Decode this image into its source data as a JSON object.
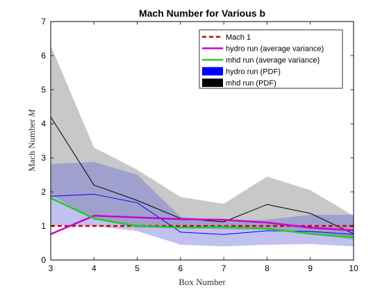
{
  "chart_data": {
    "type": "line",
    "title": "Mach Number for Various b",
    "xlabel": "Box Number",
    "ylabel_text": "Mach Number ",
    "ylabel_symbol": "M",
    "xlim": [
      3,
      10
    ],
    "ylim": [
      0,
      7
    ],
    "xticks": [
      "3",
      "4",
      "5",
      "6",
      "7",
      "8",
      "9",
      "10"
    ],
    "yticks": [
      "0",
      "1",
      "2",
      "3",
      "4",
      "5",
      "6",
      "7"
    ],
    "x": [
      3,
      4,
      5,
      6,
      7,
      8,
      9,
      10
    ],
    "grid": false,
    "legend_position": "top-right",
    "bands": [
      {
        "name": "mhd run (PDF)",
        "fill": "#c8c8c8",
        "upper": [
          6.3,
          3.3,
          2.65,
          1.85,
          1.65,
          2.45,
          2.05,
          1.3
        ],
        "lower": [
          1.9,
          1.2,
          0.95,
          0.95,
          0.9,
          0.9,
          0.75,
          0.6
        ]
      },
      {
        "name": "hydro run (PDF)",
        "fill": "#6464d7",
        "opacity": 0.4,
        "upper": [
          2.82,
          2.88,
          2.5,
          1.27,
          1.15,
          1.18,
          1.33,
          1.33
        ],
        "lower": [
          1.02,
          1.0,
          0.85,
          0.45,
          0.4,
          0.45,
          0.47,
          0.4
        ]
      }
    ],
    "series": [
      {
        "name": "hydro PDF median",
        "color": "#0000ff",
        "width": 1,
        "dash": "",
        "values": [
          1.87,
          1.93,
          1.68,
          0.82,
          0.75,
          0.86,
          0.84,
          0.75
        ]
      },
      {
        "name": "mhd PDF median",
        "color": "#000000",
        "width": 1,
        "dash": "",
        "values": [
          4.2,
          2.2,
          1.75,
          1.22,
          1.12,
          1.63,
          1.37,
          0.77
        ]
      },
      {
        "name": "Mach 1",
        "color": "#cc0000",
        "width": 2.5,
        "dash": "6,4",
        "values": [
          1,
          1,
          1,
          1,
          1,
          1,
          1,
          1
        ]
      },
      {
        "name": "hydro run (average variance)",
        "color": "#cc00cc",
        "width": 2.5,
        "dash": "",
        "values": [
          0.76,
          1.3,
          1.25,
          1.2,
          1.18,
          1.1,
          0.95,
          0.87
        ]
      },
      {
        "name": "mhd run (average variance)",
        "color": "#22cc22",
        "width": 2.5,
        "dash": "",
        "values": [
          1.82,
          1.22,
          1.0,
          0.95,
          0.97,
          0.92,
          0.77,
          0.67
        ]
      }
    ],
    "legend": [
      {
        "label": "Mach 1",
        "kind": "line",
        "color": "#cc0000",
        "dash": "6,4"
      },
      {
        "label": "hydro run (average variance)",
        "kind": "line",
        "color": "#cc00cc",
        "dash": ""
      },
      {
        "label": "mhd run (average variance)",
        "kind": "line",
        "color": "#22cc22",
        "dash": ""
      },
      {
        "label": "hydro run (PDF)",
        "kind": "patch",
        "color": "#0000ff"
      },
      {
        "label": "mhd run (PDF)",
        "kind": "patch",
        "color": "#000000"
      }
    ]
  }
}
